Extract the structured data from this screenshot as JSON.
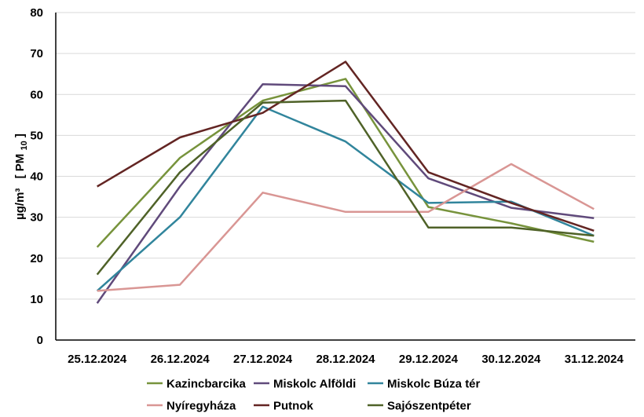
{
  "chart_data": {
    "type": "line",
    "title": "",
    "xlabel": "",
    "ylabel": {
      "unit": "µg/m³",
      "bracket_open": "[",
      "quantity": "PM",
      "subscript": "10",
      "bracket_close": "]"
    },
    "ylim": [
      0,
      80
    ],
    "yticks": [
      0,
      10,
      20,
      30,
      40,
      50,
      60,
      70,
      80
    ],
    "grid": "horizontal",
    "legend_position": "bottom",
    "categories": [
      "25.12.2024",
      "26.12.2024",
      "27.12.2024",
      "28.12.2024",
      "29.12.2024",
      "30.12.2024",
      "31.12.2024"
    ],
    "series": [
      {
        "name": "Kazincbarcika",
        "color": "#77933c",
        "values": [
          22.7,
          44.5,
          58.5,
          63.8,
          32.5,
          28.5,
          24.0
        ]
      },
      {
        "name": "Miskolc Alföldi",
        "color": "#604a7b",
        "values": [
          9.0,
          37.5,
          62.5,
          62.0,
          39.5,
          32.3,
          29.8
        ]
      },
      {
        "name": "Miskolc Búza tér",
        "color": "#31859c",
        "values": [
          12.0,
          30.0,
          57.0,
          48.5,
          33.5,
          33.8,
          25.5
        ]
      },
      {
        "name": "Nyíregyháza",
        "color": "#d99694",
        "values": [
          12.0,
          13.5,
          36.0,
          31.3,
          31.3,
          43.0,
          32.0
        ]
      },
      {
        "name": "Putnok",
        "color": "#632523",
        "values": [
          37.5,
          49.5,
          55.5,
          68.0,
          41.0,
          33.5,
          26.7
        ]
      },
      {
        "name": "Sajószentpéter",
        "color": "#4f6228",
        "values": [
          16.0,
          41.0,
          58.0,
          58.5,
          27.5,
          27.5,
          25.5
        ]
      }
    ]
  }
}
